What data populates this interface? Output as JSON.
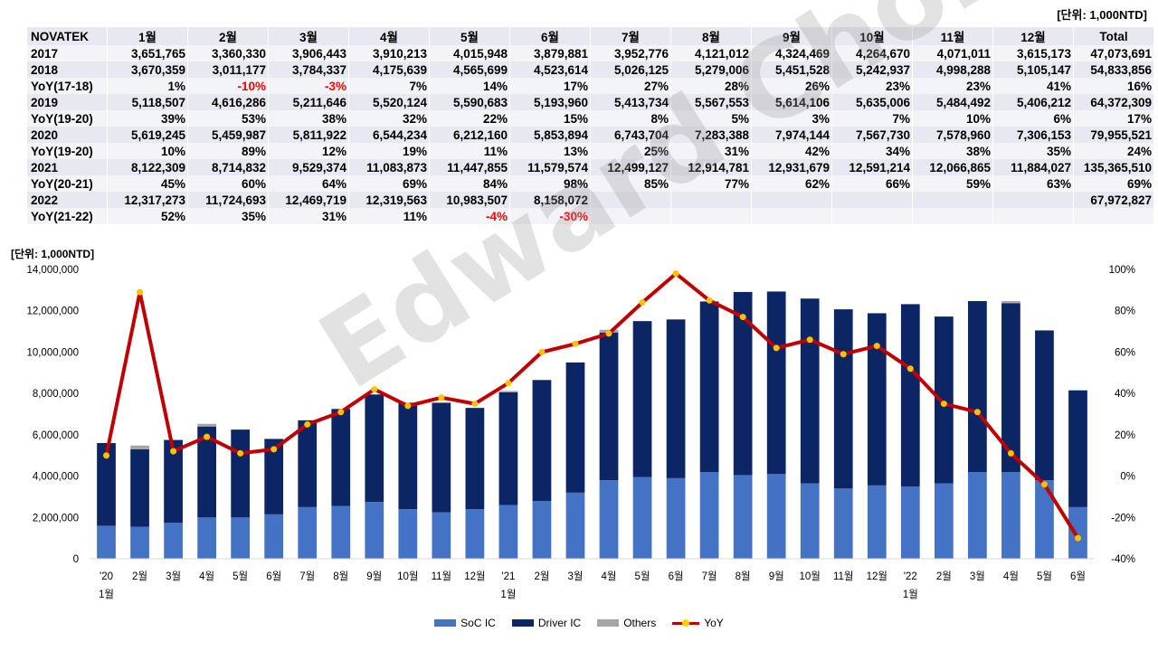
{
  "unit_top": "[단위: 1,000NTD]",
  "unit_chart": "[단위: 1,000NTD]",
  "watermark": "Edward Choi",
  "table": {
    "header": [
      "NOVATEK",
      "1월",
      "2월",
      "3월",
      "4월",
      "5월",
      "6월",
      "7월",
      "8월",
      "9월",
      "10월",
      "11월",
      "12월",
      "Total"
    ],
    "rows": [
      {
        "label": "2017",
        "cells": [
          "3,651,765",
          "3,360,330",
          "3,906,443",
          "3,910,213",
          "4,015,948",
          "3,879,881",
          "3,952,776",
          "4,121,012",
          "4,324,469",
          "4,264,670",
          "4,071,011",
          "3,615,173",
          "47,073,691"
        ]
      },
      {
        "label": "2018",
        "cells": [
          "3,670,359",
          "3,011,177",
          "3,784,337",
          "4,175,639",
          "4,565,699",
          "4,523,614",
          "5,026,125",
          "5,279,006",
          "5,451,528",
          "5,242,937",
          "4,998,288",
          "5,105,147",
          "54,833,856"
        ]
      },
      {
        "label": "YoY(17-18)",
        "cells": [
          "1%",
          "-10%",
          "-3%",
          "7%",
          "14%",
          "17%",
          "27%",
          "28%",
          "26%",
          "23%",
          "23%",
          "41%",
          "16%"
        ]
      },
      {
        "label": "2019",
        "cells": [
          "5,118,507",
          "4,616,286",
          "5,211,646",
          "5,520,124",
          "5,590,683",
          "5,193,960",
          "5,413,734",
          "5,567,553",
          "5,614,106",
          "5,635,006",
          "5,484,492",
          "5,406,212",
          "64,372,309"
        ]
      },
      {
        "label": "YoY(19-20)",
        "cells": [
          "39%",
          "53%",
          "38%",
          "32%",
          "22%",
          "15%",
          "8%",
          "5%",
          "3%",
          "7%",
          "10%",
          "6%",
          "17%"
        ]
      },
      {
        "label": "2020",
        "cells": [
          "5,619,245",
          "5,459,987",
          "5,811,922",
          "6,544,234",
          "6,212,160",
          "5,853,894",
          "6,743,704",
          "7,283,388",
          "7,974,144",
          "7,567,730",
          "7,578,960",
          "7,306,153",
          "79,955,521"
        ]
      },
      {
        "label": "YoY(19-20)",
        "cells": [
          "10%",
          "89%",
          "12%",
          "19%",
          "11%",
          "13%",
          "25%",
          "31%",
          "42%",
          "34%",
          "38%",
          "35%",
          "24%"
        ]
      },
      {
        "label": "2021",
        "cells": [
          "8,122,309",
          "8,714,832",
          "9,529,374",
          "11,083,873",
          "11,447,855",
          "11,579,574",
          "12,499,127",
          "12,914,781",
          "12,931,679",
          "12,591,214",
          "12,066,865",
          "11,884,027",
          "135,365,510"
        ]
      },
      {
        "label": "YoY(20-21)",
        "cells": [
          "45%",
          "60%",
          "64%",
          "69%",
          "84%",
          "98%",
          "85%",
          "77%",
          "62%",
          "66%",
          "59%",
          "63%",
          "69%"
        ]
      },
      {
        "label": "2022",
        "cells": [
          "12,317,273",
          "11,724,693",
          "12,469,719",
          "12,319,563",
          "10,983,507",
          "8,158,072",
          "",
          "",
          "",
          "",
          "",
          "",
          "67,972,827"
        ]
      },
      {
        "label": "YoY(21-22)",
        "cells": [
          "52%",
          "35%",
          "31%",
          "11%",
          "-4%",
          "-30%",
          "",
          "",
          "",
          "",
          "",
          "",
          ""
        ]
      }
    ]
  },
  "chart_data": {
    "type": "bar",
    "stacked": true,
    "categories": [
      "'20 1월",
      "2월",
      "3월",
      "4월",
      "5월",
      "6월",
      "7월",
      "8월",
      "9월",
      "10월",
      "11월",
      "12월",
      "'21 1월",
      "2월",
      "3월",
      "4월",
      "5월",
      "6월",
      "7월",
      "8월",
      "9월",
      "10월",
      "11월",
      "12월",
      "'22 1월",
      "2월",
      "3월",
      "4월",
      "5월",
      "6월"
    ],
    "category_lines": [
      [
        "'20",
        "1월"
      ],
      [
        "2월"
      ],
      [
        "3월"
      ],
      [
        "4월"
      ],
      [
        "5월"
      ],
      [
        "6월"
      ],
      [
        "7월"
      ],
      [
        "8월"
      ],
      [
        "9월"
      ],
      [
        "10월"
      ],
      [
        "11월"
      ],
      [
        "12월"
      ],
      [
        "'21",
        "1월"
      ],
      [
        "2월"
      ],
      [
        "3월"
      ],
      [
        "4월"
      ],
      [
        "5월"
      ],
      [
        "6월"
      ],
      [
        "7월"
      ],
      [
        "8월"
      ],
      [
        "9월"
      ],
      [
        "10월"
      ],
      [
        "11월"
      ],
      [
        "12월"
      ],
      [
        "'22",
        "1월"
      ],
      [
        "2월"
      ],
      [
        "3월"
      ],
      [
        "4월"
      ],
      [
        "5월"
      ],
      [
        "6월"
      ]
    ],
    "series": [
      {
        "name": "SoC IC",
        "color": "#4472c4",
        "values": [
          1600000,
          1550000,
          1750000,
          2000000,
          2000000,
          2150000,
          2500000,
          2550000,
          2750000,
          2400000,
          2250000,
          2400000,
          2600000,
          2800000,
          3200000,
          3800000,
          3950000,
          3900000,
          4200000,
          4050000,
          4100000,
          3650000,
          3400000,
          3550000,
          3500000,
          3650000,
          4200000,
          4200000,
          3800000,
          2500000
        ]
      },
      {
        "name": "Driver IC",
        "color": "#0b2565",
        "values": [
          4000000,
          3750000,
          4000000,
          4400000,
          4250000,
          3650000,
          4200000,
          4700000,
          5200000,
          5150000,
          5300000,
          4900000,
          5450000,
          5850000,
          6300000,
          7150000,
          7550000,
          7680000,
          8250000,
          8860000,
          8830000,
          8940000,
          8670000,
          8330000,
          8820000,
          8070000,
          8270000,
          8170000,
          7250000,
          5650000
        ]
      },
      {
        "name": "Others",
        "color": "#a6a6a6",
        "values": [
          0,
          180000,
          0,
          130000,
          0,
          0,
          0,
          0,
          0,
          0,
          0,
          0,
          70000,
          0,
          0,
          130000,
          0,
          0,
          0,
          0,
          0,
          0,
          0,
          0,
          0,
          0,
          0,
          100000,
          0,
          0
        ]
      }
    ],
    "line_series": {
      "name": "YoY",
      "color": "#c00000",
      "marker_color": "#ffc000",
      "axis": "right",
      "values": [
        10,
        89,
        12,
        19,
        11,
        13,
        25,
        31,
        42,
        34,
        38,
        35,
        45,
        60,
        64,
        69,
        84,
        98,
        85,
        77,
        62,
        66,
        59,
        63,
        52,
        35,
        31,
        11,
        -4,
        -30
      ]
    },
    "ylim_left": [
      0,
      14000000
    ],
    "yticks_left": [
      "0",
      "2,000,000",
      "4,000,000",
      "6,000,000",
      "8,000,000",
      "10,000,000",
      "12,000,000",
      "14,000,000"
    ],
    "ylim_right": [
      -40,
      100
    ],
    "yticks_right": [
      "-40%",
      "-20%",
      "0%",
      "20%",
      "40%",
      "60%",
      "80%",
      "100%"
    ],
    "legend": [
      "SoC IC",
      "Driver IC",
      "Others",
      "YoY"
    ]
  }
}
